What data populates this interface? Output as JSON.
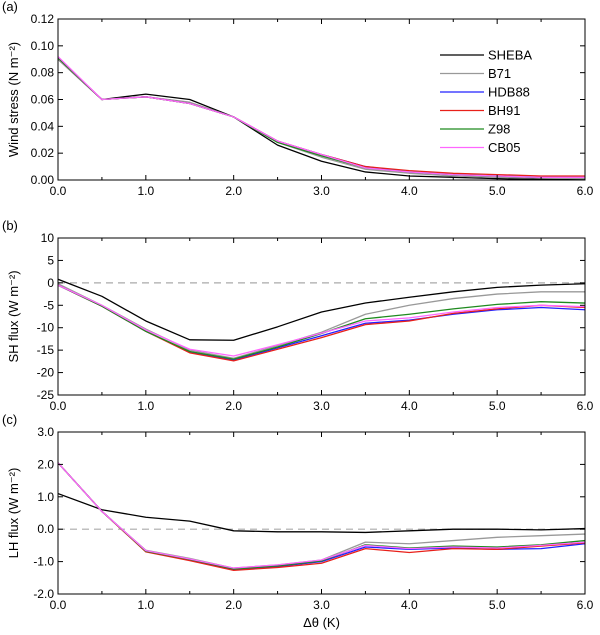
{
  "chart_data": [
    {
      "type": "line",
      "panel_label": "(a)",
      "ylabel": "Wind stress (N m⁻²)",
      "xlim": [
        0,
        6
      ],
      "ylim": [
        0,
        0.12
      ],
      "yticks": [
        "0.00",
        "0.02",
        "0.04",
        "0.06",
        "0.08",
        "0.10",
        "0.12"
      ],
      "xticks": [
        "0.0",
        "1.0",
        "2.0",
        "3.0",
        "4.0",
        "5.0",
        "6.0"
      ],
      "zero_line": false,
      "legend": "top-right",
      "x": [
        0,
        0.5,
        1.0,
        1.5,
        2.0,
        2.5,
        3.0,
        3.5,
        4.0,
        4.5,
        5.0,
        5.5,
        6.0
      ],
      "series": [
        {
          "name": "SHEBA",
          "color": "#000000",
          "values": [
            0.09,
            0.06,
            0.064,
            0.06,
            0.047,
            0.026,
            0.014,
            0.006,
            0.003,
            0.002,
            0.001,
            0.0005,
            0.0003
          ]
        },
        {
          "name": "B71",
          "color": "#999999",
          "values": [
            0.09,
            0.06,
            0.062,
            0.058,
            0.047,
            0.028,
            0.017,
            0.008,
            0.005,
            0.003,
            0.002,
            0.0015,
            0.001
          ]
        },
        {
          "name": "HDB88",
          "color": "#2020ff",
          "values": [
            0.091,
            0.06,
            0.062,
            0.057,
            0.047,
            0.029,
            0.019,
            0.01,
            0.006,
            0.004,
            0.003,
            0.002,
            0.002
          ]
        },
        {
          "name": "BH91",
          "color": "#e8201a",
          "values": [
            0.091,
            0.06,
            0.062,
            0.057,
            0.047,
            0.029,
            0.019,
            0.01,
            0.007,
            0.005,
            0.004,
            0.003,
            0.003
          ]
        },
        {
          "name": "Z98",
          "color": "#1f8a1f",
          "values": [
            0.091,
            0.06,
            0.062,
            0.057,
            0.047,
            0.028,
            0.018,
            0.009,
            0.006,
            0.004,
            0.003,
            0.002,
            0.002
          ]
        },
        {
          "name": "CB05",
          "color": "#ff66ff",
          "values": [
            0.092,
            0.06,
            0.062,
            0.057,
            0.047,
            0.029,
            0.019,
            0.009,
            0.006,
            0.004,
            0.003,
            0.002,
            0.002
          ]
        }
      ]
    },
    {
      "type": "line",
      "panel_label": "(b)",
      "ylabel": "SH flux (W m⁻²)",
      "xlim": [
        0,
        6
      ],
      "ylim": [
        -25,
        10
      ],
      "yticks": [
        "-25",
        "-20",
        "-15",
        "-10",
        "-5",
        "0",
        "5",
        "10"
      ],
      "xticks": [
        "0.0",
        "1.0",
        "2.0",
        "3.0",
        "4.0",
        "5.0",
        "6.0"
      ],
      "zero_line": true,
      "x": [
        0,
        0.5,
        1.0,
        1.5,
        2.0,
        2.5,
        3.0,
        3.5,
        4.0,
        4.5,
        5.0,
        5.5,
        6.0
      ],
      "series": [
        {
          "name": "SHEBA",
          "color": "#000000",
          "values": [
            0.8,
            -3.0,
            -8.5,
            -12.7,
            -12.8,
            -9.8,
            -6.5,
            -4.5,
            -3.2,
            -2.0,
            -1.0,
            -0.5,
            -0.2
          ]
        },
        {
          "name": "B71",
          "color": "#999999",
          "values": [
            -0.2,
            -5.0,
            -10.3,
            -15.0,
            -16.8,
            -14.0,
            -11.0,
            -7.0,
            -5.0,
            -3.5,
            -2.5,
            -2.0,
            -2.0
          ]
        },
        {
          "name": "HDB88",
          "color": "#2020ff",
          "values": [
            -0.5,
            -5.2,
            -10.8,
            -15.4,
            -17.2,
            -14.5,
            -11.8,
            -9.0,
            -8.3,
            -7.0,
            -6.0,
            -5.5,
            -6.0
          ]
        },
        {
          "name": "BH91",
          "color": "#e8201a",
          "values": [
            -0.5,
            -5.2,
            -10.8,
            -15.6,
            -17.4,
            -14.8,
            -12.2,
            -9.3,
            -8.5,
            -6.8,
            -5.8,
            -5.0,
            -5.5
          ]
        },
        {
          "name": "Z98",
          "color": "#1f8a1f",
          "values": [
            -0.5,
            -5.2,
            -10.8,
            -15.3,
            -17.0,
            -14.3,
            -11.3,
            -8.0,
            -7.0,
            -5.8,
            -4.8,
            -4.2,
            -4.5
          ]
        },
        {
          "name": "CB05",
          "color": "#ff66ff",
          "values": [
            -0.5,
            -5.0,
            -10.5,
            -14.8,
            -16.3,
            -13.8,
            -11.2,
            -8.5,
            -7.8,
            -6.5,
            -5.5,
            -5.0,
            -5.3
          ]
        }
      ]
    },
    {
      "type": "line",
      "panel_label": "(c)",
      "ylabel": "LH flux (W m⁻²)",
      "xlabel": "Δθ (K)",
      "xlim": [
        0,
        6
      ],
      "ylim": [
        -2.0,
        3.0
      ],
      "yticks": [
        "-2.0",
        "-1.0",
        "0.0",
        "1.0",
        "2.0",
        "3.0"
      ],
      "xticks": [
        "0.0",
        "1.0",
        "2.0",
        "3.0",
        "4.0",
        "5.0",
        "6.0"
      ],
      "zero_line": true,
      "x": [
        0,
        0.5,
        1.0,
        1.5,
        2.0,
        2.5,
        3.0,
        3.5,
        4.0,
        4.5,
        5.0,
        5.5,
        6.0
      ],
      "series": [
        {
          "name": "SHEBA",
          "color": "#000000",
          "values": [
            1.1,
            0.6,
            0.37,
            0.25,
            -0.05,
            -0.08,
            -0.08,
            -0.1,
            -0.05,
            0.0,
            0.0,
            -0.02,
            0.02
          ]
        },
        {
          "name": "B71",
          "color": "#999999",
          "values": [
            2.05,
            0.55,
            -0.65,
            -0.9,
            -1.2,
            -1.1,
            -0.95,
            -0.4,
            -0.45,
            -0.35,
            -0.25,
            -0.2,
            -0.15
          ]
        },
        {
          "name": "HDB88",
          "color": "#2020ff",
          "values": [
            2.05,
            0.55,
            -0.68,
            -0.95,
            -1.24,
            -1.15,
            -1.0,
            -0.55,
            -0.62,
            -0.58,
            -0.62,
            -0.6,
            -0.45
          ]
        },
        {
          "name": "BH91",
          "color": "#e8201a",
          "values": [
            2.05,
            0.55,
            -0.7,
            -0.97,
            -1.27,
            -1.18,
            -1.05,
            -0.6,
            -0.72,
            -0.6,
            -0.62,
            -0.52,
            -0.42
          ]
        },
        {
          "name": "Z98",
          "color": "#1f8a1f",
          "values": [
            2.05,
            0.55,
            -0.68,
            -0.93,
            -1.23,
            -1.13,
            -0.98,
            -0.48,
            -0.58,
            -0.52,
            -0.55,
            -0.48,
            -0.35
          ]
        },
        {
          "name": "CB05",
          "color": "#ff66ff",
          "values": [
            2.05,
            0.55,
            -0.66,
            -0.92,
            -1.2,
            -1.1,
            -0.95,
            -0.5,
            -0.6,
            -0.55,
            -0.58,
            -0.5,
            -0.4
          ]
        }
      ]
    }
  ]
}
